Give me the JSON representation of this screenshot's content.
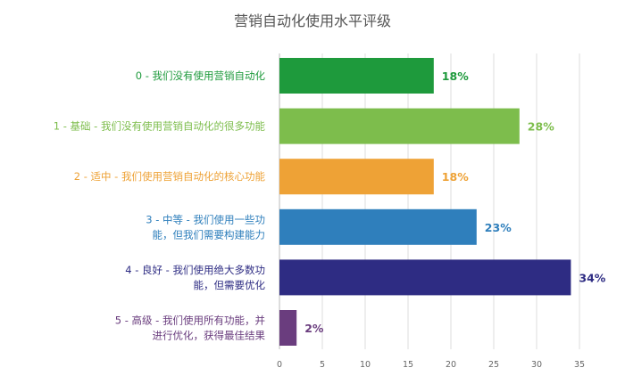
{
  "chart_data": {
    "type": "bar",
    "orientation": "horizontal",
    "title": "营销自动化使用水平评级",
    "xlabel": "",
    "ylabel": "",
    "xlim": [
      0,
      35
    ],
    "x_ticks": [
      "0",
      "5",
      "10",
      "15",
      "20",
      "25",
      "30",
      "35"
    ],
    "grid": true,
    "legend": "none",
    "categories": [
      {
        "lines": [
          "0 - 我们没有使用营销自动化"
        ],
        "value": 18,
        "label": "18%",
        "color": "#1e9a3c"
      },
      {
        "lines": [
          "1 - 基础 - 我们没有使用营销自动化的很多功能"
        ],
        "value": 28,
        "label": "28%",
        "color": "#7dbd4c"
      },
      {
        "lines": [
          "2 - 适中 - 我们使用营销自动化的核心功能"
        ],
        "value": 18,
        "label": "18%",
        "color": "#eea236"
      },
      {
        "lines": [
          "3 - 中等 - 我们使用一些功",
          "能，但我们需要构建能力"
        ],
        "value": 23,
        "label": "23%",
        "color": "#2f7fbc"
      },
      {
        "lines": [
          "4 - 良好 - 我们使用绝大多数功",
          "能，但需要优化"
        ],
        "value": 34,
        "label": "34%",
        "color": "#2e2c83"
      },
      {
        "lines": [
          "5 - 高级 - 我们使用所有功能，并",
          "进行优化，获得最佳结果"
        ],
        "value": 2,
        "label": "2%",
        "color": "#6a3d7e"
      }
    ]
  }
}
